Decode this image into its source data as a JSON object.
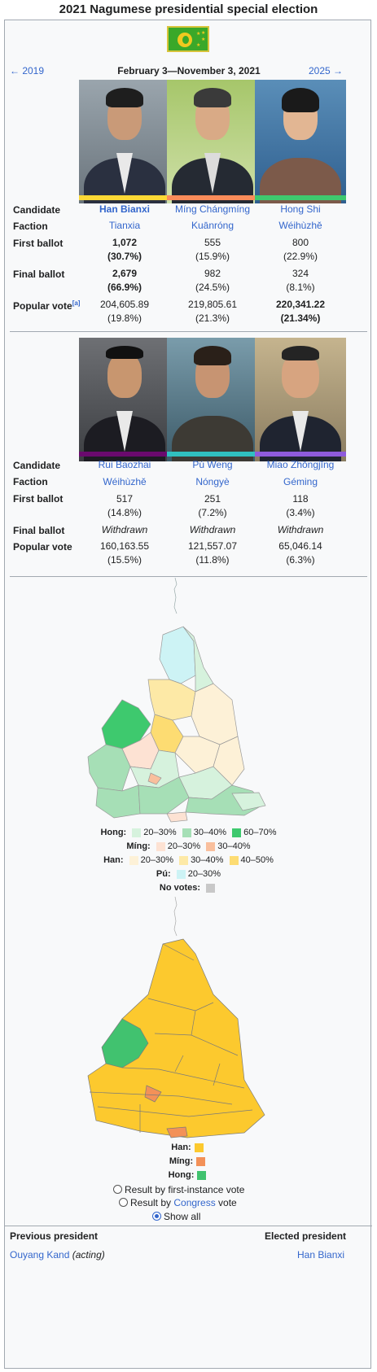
{
  "title": "2021 Nagumese presidential special election",
  "nav": {
    "prev": "← 2019",
    "dates": "February 3—November 3, 2021",
    "next": "2025 →"
  },
  "row_labels": {
    "candidate": "Candidate",
    "faction": "Faction",
    "first": "First ballot",
    "final": "Final ballot",
    "popular": "Popular vote",
    "note": "[a]"
  },
  "group1": [
    {
      "name": "Han Bianxi",
      "faction": "Tianxia",
      "first_votes": "1,072",
      "first_pct": "(30.7%)",
      "final_votes": "2,679",
      "final_pct": "(66.9%)",
      "pop_votes": "204,605.89",
      "pop_pct": "(19.8%)",
      "color": "#fdd835"
    },
    {
      "name": "Míng Chángmíng",
      "faction": "Kuānróng",
      "first_votes": "555",
      "first_pct": "(15.9%)",
      "final_votes": "982",
      "final_pct": "(24.5%)",
      "pop_votes": "219,805.61",
      "pop_pct": "(21.3%)",
      "color": "#fb8c5a"
    },
    {
      "name": "Hong Shi",
      "faction": "Wéihùzhě",
      "first_votes": "800",
      "first_pct": "(22.9%)",
      "final_votes": "324",
      "final_pct": "(8.1%)",
      "pop_votes": "220,341.22",
      "pop_pct": "(21.34%)",
      "color": "#3ec96e"
    }
  ],
  "group2": [
    {
      "name": "Rui Baozhai",
      "faction": "Wéihùzhě",
      "first_votes": "517",
      "first_pct": "(14.8%)",
      "final": "Withdrawn",
      "pop_votes": "160,163.55",
      "pop_pct": "(15.5%)",
      "color": "#6a0a6e"
    },
    {
      "name": "Pú Weng",
      "faction": "Nóngyè",
      "first_votes": "251",
      "first_pct": "(7.2%)",
      "final": "Withdrawn",
      "pop_votes": "121,557.07",
      "pop_pct": "(11.8%)",
      "color": "#30c0c0"
    },
    {
      "name": "Miao Zhōngjīng",
      "faction": "Géming",
      "first_votes": "118",
      "first_pct": "(3.4%)",
      "final": "Withdrawn",
      "pop_votes": "65,046.14",
      "pop_pct": "(6.3%)",
      "color": "#8f5bdc"
    }
  ],
  "legend1": {
    "hong": "Hong:",
    "hong_items": [
      "20–30%",
      "30–40%",
      "60–70%"
    ],
    "hong_colors": [
      "#d6f2dd",
      "#a6dfb6",
      "#3ec96e"
    ],
    "ming": "Míng:",
    "ming_items": [
      "20–30%",
      "30–40%"
    ],
    "ming_colors": [
      "#fde2d3",
      "#f9bf9d"
    ],
    "han": "Han:",
    "han_items": [
      "20–30%",
      "30–40%",
      "40–50%"
    ],
    "han_colors": [
      "#fdf1d7",
      "#fde9a6",
      "#fddc72"
    ],
    "pu": "Pú:",
    "pu_items": [
      "20–30%"
    ],
    "pu_colors": [
      "#cdf3f5"
    ],
    "novotes": "No votes:",
    "novotes_color": "#c8c8c8"
  },
  "legend2": {
    "han": "Han:",
    "ming": "Míng:",
    "hong": "Hong:",
    "han_color": "#fcc92e",
    "ming_color": "#f39158",
    "hong_color": "#41c26f"
  },
  "radios": {
    "first_instance": "Result by first-instance vote",
    "congress_pre": "Result by ",
    "congress_link": "Congress",
    "congress_post": " vote",
    "show_all": "Show all"
  },
  "footer": {
    "prev_label": "Previous president",
    "prev_name": "Ouyang Kand",
    "prev_note": "(acting)",
    "elected_label": "Elected president",
    "elected_name": "Han Bianxi"
  }
}
